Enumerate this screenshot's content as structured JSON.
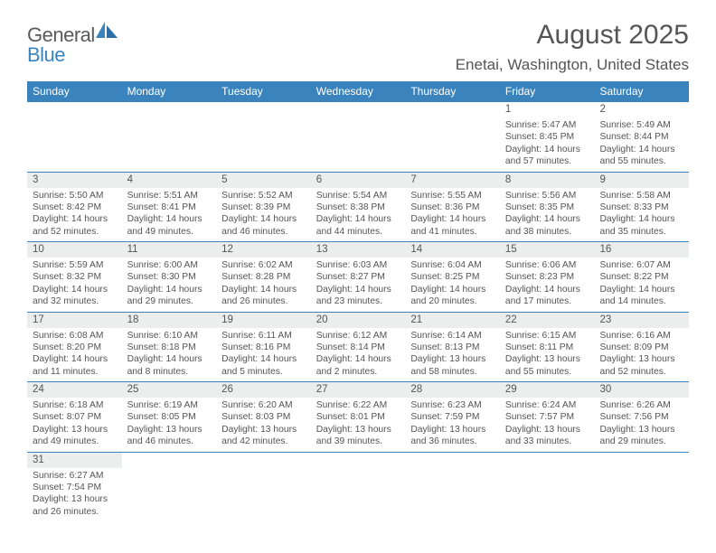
{
  "brand": {
    "part1": "General",
    "part2": "Blue"
  },
  "title": "August 2025",
  "location": "Enetai, Washington, United States",
  "colors": {
    "header_bg": "#3b83bd",
    "header_fg": "#ffffff",
    "daynum_bg": "#eceded",
    "text": "#555555",
    "week_divider": "#3b83bd",
    "page_bg": "#ffffff"
  },
  "typography": {
    "title_fontsize": 30,
    "location_fontsize": 17,
    "weekday_fontsize": 12,
    "daynum_fontsize": 11.5,
    "body_fontsize": 10.3
  },
  "weekdays": [
    "Sunday",
    "Monday",
    "Tuesday",
    "Wednesday",
    "Thursday",
    "Friday",
    "Saturday"
  ],
  "weeks": [
    [
      null,
      null,
      null,
      null,
      null,
      {
        "n": "1",
        "sunrise": "5:47 AM",
        "sunset": "8:45 PM",
        "dl_h": "14",
        "dl_m": "57"
      },
      {
        "n": "2",
        "sunrise": "5:49 AM",
        "sunset": "8:44 PM",
        "dl_h": "14",
        "dl_m": "55"
      }
    ],
    [
      {
        "n": "3",
        "sunrise": "5:50 AM",
        "sunset": "8:42 PM",
        "dl_h": "14",
        "dl_m": "52"
      },
      {
        "n": "4",
        "sunrise": "5:51 AM",
        "sunset": "8:41 PM",
        "dl_h": "14",
        "dl_m": "49"
      },
      {
        "n": "5",
        "sunrise": "5:52 AM",
        "sunset": "8:39 PM",
        "dl_h": "14",
        "dl_m": "46"
      },
      {
        "n": "6",
        "sunrise": "5:54 AM",
        "sunset": "8:38 PM",
        "dl_h": "14",
        "dl_m": "44"
      },
      {
        "n": "7",
        "sunrise": "5:55 AM",
        "sunset": "8:36 PM",
        "dl_h": "14",
        "dl_m": "41"
      },
      {
        "n": "8",
        "sunrise": "5:56 AM",
        "sunset": "8:35 PM",
        "dl_h": "14",
        "dl_m": "38"
      },
      {
        "n": "9",
        "sunrise": "5:58 AM",
        "sunset": "8:33 PM",
        "dl_h": "14",
        "dl_m": "35"
      }
    ],
    [
      {
        "n": "10",
        "sunrise": "5:59 AM",
        "sunset": "8:32 PM",
        "dl_h": "14",
        "dl_m": "32"
      },
      {
        "n": "11",
        "sunrise": "6:00 AM",
        "sunset": "8:30 PM",
        "dl_h": "14",
        "dl_m": "29"
      },
      {
        "n": "12",
        "sunrise": "6:02 AM",
        "sunset": "8:28 PM",
        "dl_h": "14",
        "dl_m": "26"
      },
      {
        "n": "13",
        "sunrise": "6:03 AM",
        "sunset": "8:27 PM",
        "dl_h": "14",
        "dl_m": "23"
      },
      {
        "n": "14",
        "sunrise": "6:04 AM",
        "sunset": "8:25 PM",
        "dl_h": "14",
        "dl_m": "20"
      },
      {
        "n": "15",
        "sunrise": "6:06 AM",
        "sunset": "8:23 PM",
        "dl_h": "14",
        "dl_m": "17"
      },
      {
        "n": "16",
        "sunrise": "6:07 AM",
        "sunset": "8:22 PM",
        "dl_h": "14",
        "dl_m": "14"
      }
    ],
    [
      {
        "n": "17",
        "sunrise": "6:08 AM",
        "sunset": "8:20 PM",
        "dl_h": "14",
        "dl_m": "11"
      },
      {
        "n": "18",
        "sunrise": "6:10 AM",
        "sunset": "8:18 PM",
        "dl_h": "14",
        "dl_m": "8"
      },
      {
        "n": "19",
        "sunrise": "6:11 AM",
        "sunset": "8:16 PM",
        "dl_h": "14",
        "dl_m": "5"
      },
      {
        "n": "20",
        "sunrise": "6:12 AM",
        "sunset": "8:14 PM",
        "dl_h": "14",
        "dl_m": "2"
      },
      {
        "n": "21",
        "sunrise": "6:14 AM",
        "sunset": "8:13 PM",
        "dl_h": "13",
        "dl_m": "58"
      },
      {
        "n": "22",
        "sunrise": "6:15 AM",
        "sunset": "8:11 PM",
        "dl_h": "13",
        "dl_m": "55"
      },
      {
        "n": "23",
        "sunrise": "6:16 AM",
        "sunset": "8:09 PM",
        "dl_h": "13",
        "dl_m": "52"
      }
    ],
    [
      {
        "n": "24",
        "sunrise": "6:18 AM",
        "sunset": "8:07 PM",
        "dl_h": "13",
        "dl_m": "49"
      },
      {
        "n": "25",
        "sunrise": "6:19 AM",
        "sunset": "8:05 PM",
        "dl_h": "13",
        "dl_m": "46"
      },
      {
        "n": "26",
        "sunrise": "6:20 AM",
        "sunset": "8:03 PM",
        "dl_h": "13",
        "dl_m": "42"
      },
      {
        "n": "27",
        "sunrise": "6:22 AM",
        "sunset": "8:01 PM",
        "dl_h": "13",
        "dl_m": "39"
      },
      {
        "n": "28",
        "sunrise": "6:23 AM",
        "sunset": "7:59 PM",
        "dl_h": "13",
        "dl_m": "36"
      },
      {
        "n": "29",
        "sunrise": "6:24 AM",
        "sunset": "7:57 PM",
        "dl_h": "13",
        "dl_m": "33"
      },
      {
        "n": "30",
        "sunrise": "6:26 AM",
        "sunset": "7:56 PM",
        "dl_h": "13",
        "dl_m": "29"
      }
    ],
    [
      {
        "n": "31",
        "sunrise": "6:27 AM",
        "sunset": "7:54 PM",
        "dl_h": "13",
        "dl_m": "26"
      },
      null,
      null,
      null,
      null,
      null,
      null
    ]
  ]
}
